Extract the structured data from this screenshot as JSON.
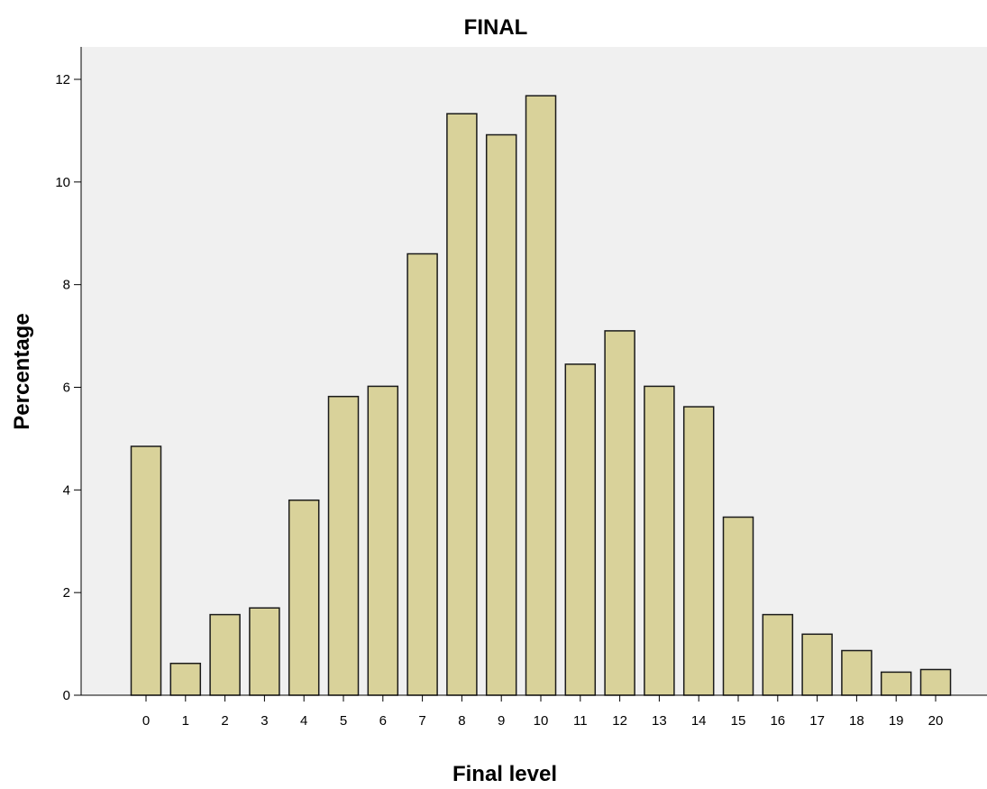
{
  "chart_data": {
    "type": "bar",
    "title": "FINAL",
    "xlabel": "Final level",
    "ylabel": "Percentage",
    "categories": [
      "0",
      "1",
      "2",
      "3",
      "4",
      "5",
      "6",
      "7",
      "8",
      "9",
      "10",
      "11",
      "12",
      "13",
      "14",
      "15",
      "16",
      "17",
      "18",
      "19",
      "20"
    ],
    "values": [
      4.85,
      0.62,
      1.57,
      1.7,
      3.8,
      5.82,
      6.02,
      8.6,
      11.33,
      10.92,
      11.68,
      6.45,
      7.1,
      6.02,
      5.62,
      3.47,
      1.57,
      1.19,
      0.87,
      0.45,
      0.5
    ],
    "ylim": [
      0,
      12.6
    ],
    "yticks": [
      0,
      2,
      4,
      6,
      8,
      10,
      12
    ],
    "grid": false,
    "colors": {
      "bar_fill": "#d9d29a",
      "bar_stroke": "#1a1a1a",
      "plot_background": "#f0f0f0",
      "axis": "#000000"
    }
  }
}
